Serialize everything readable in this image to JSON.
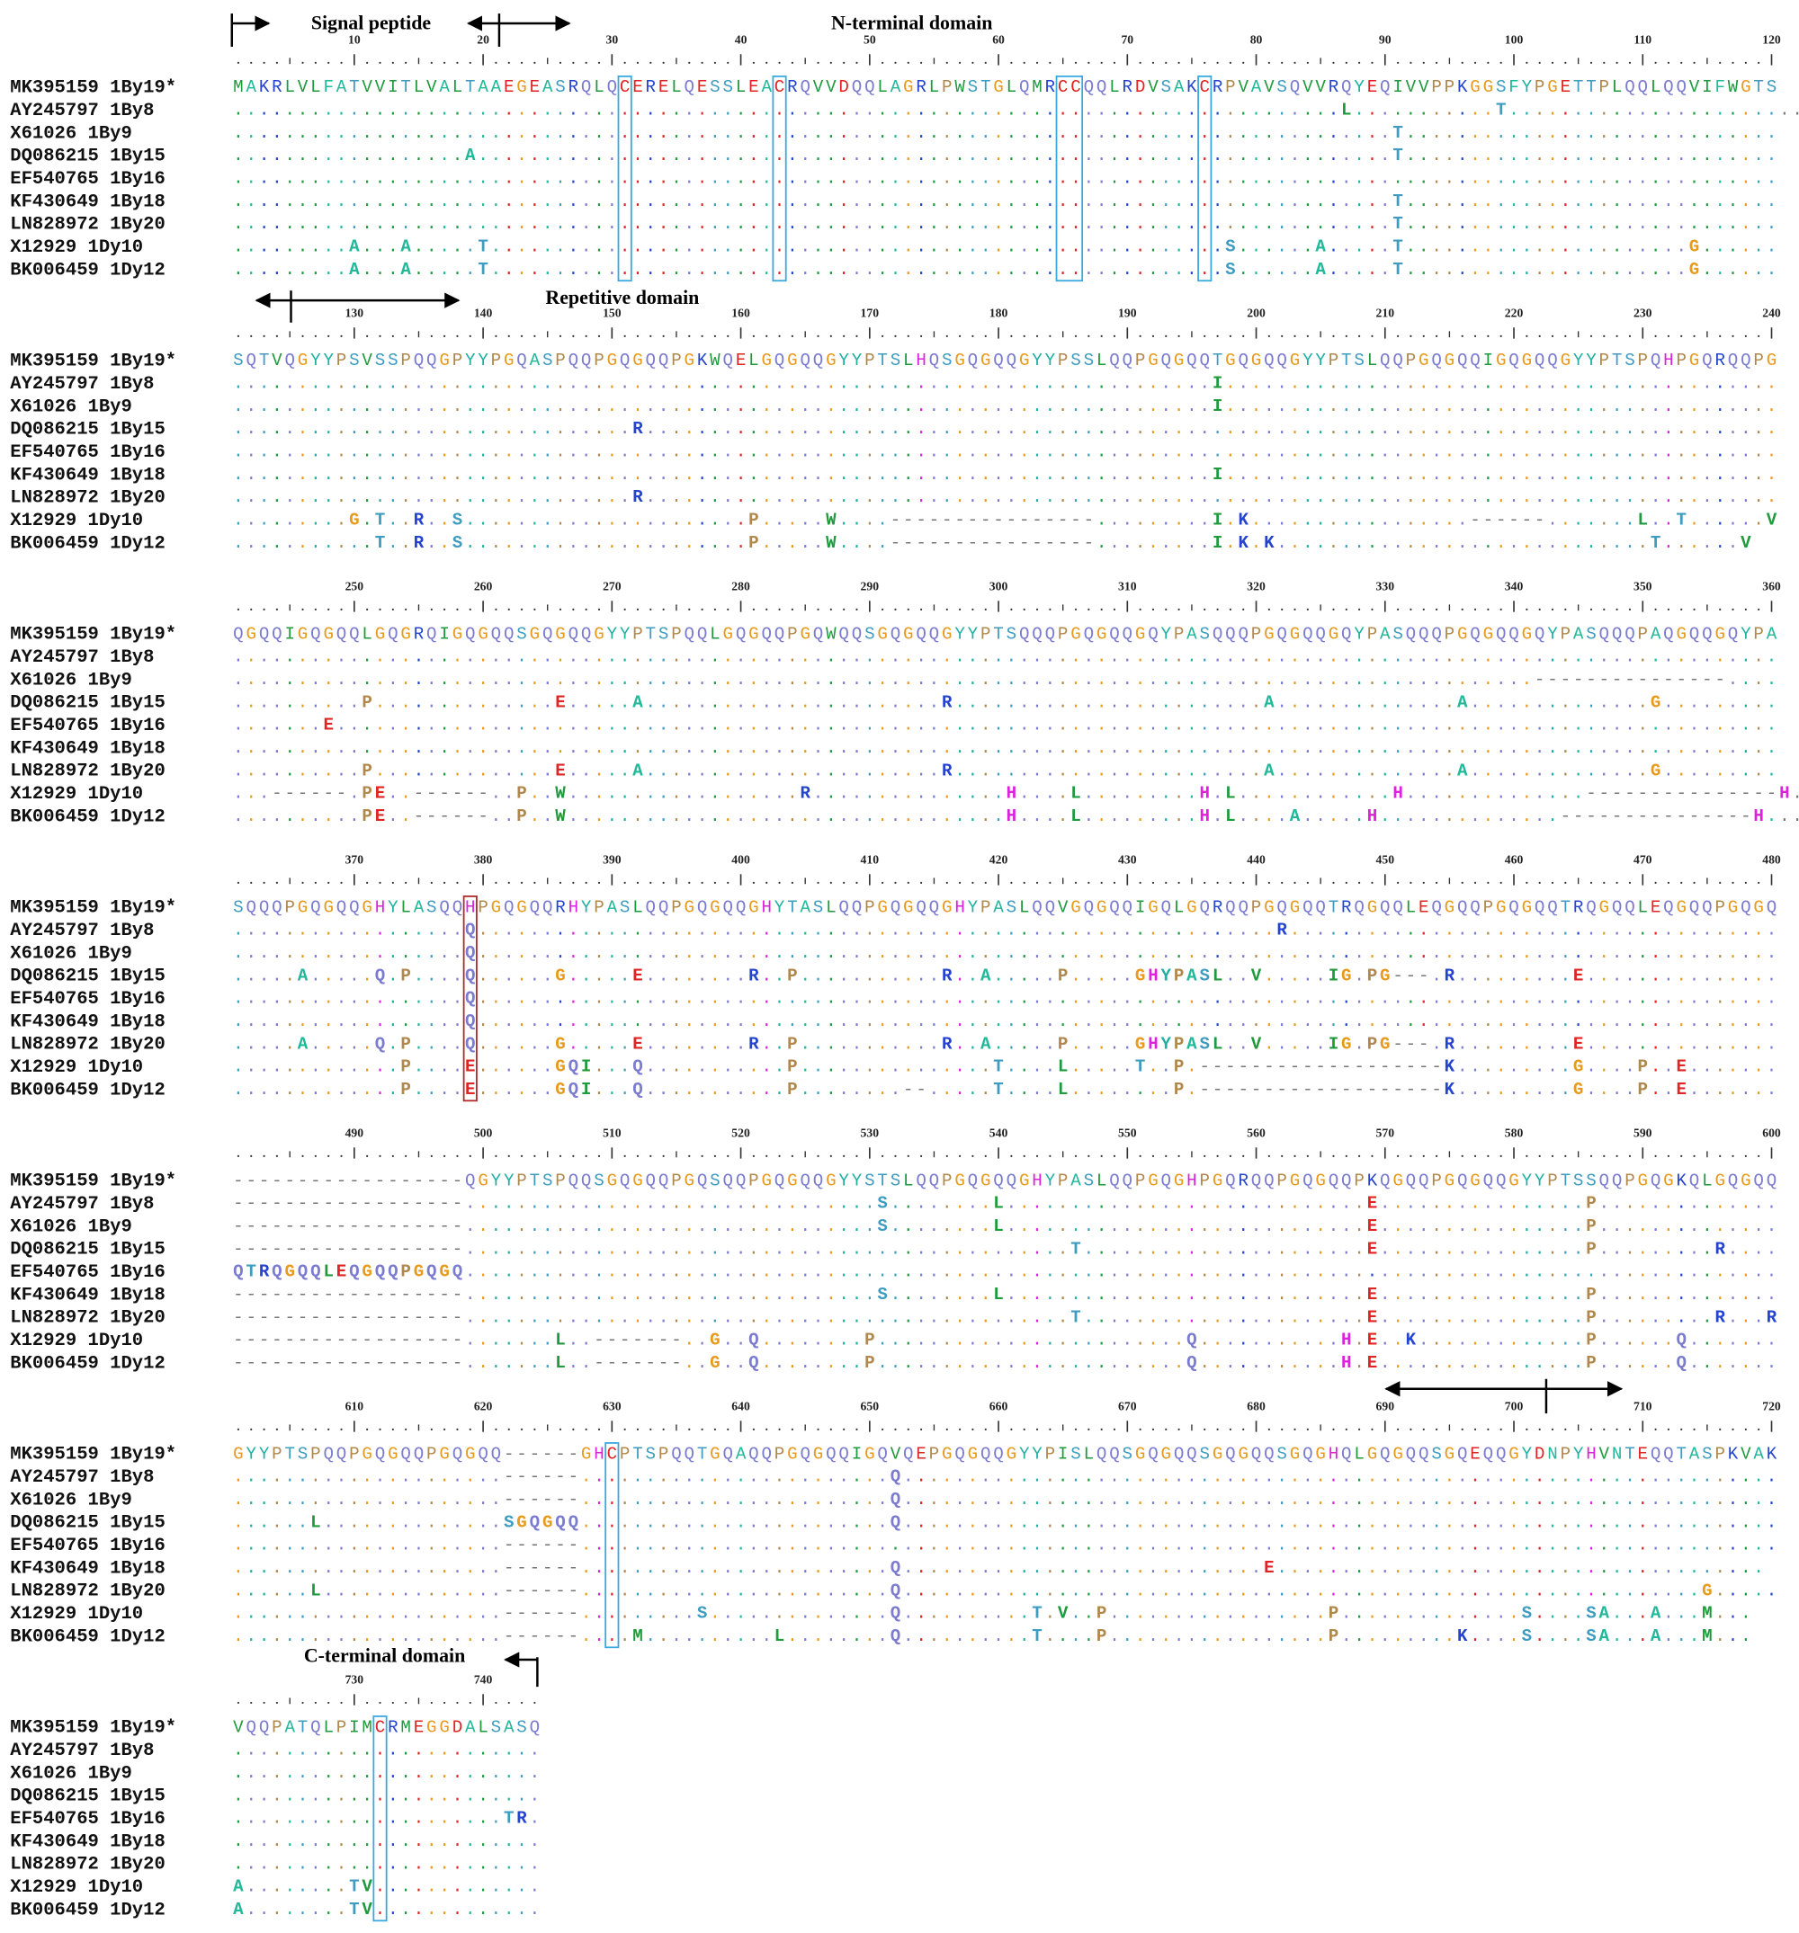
{
  "names": [
    "MK395159 1By19*",
    "AY245797 1By8",
    "X61026 1By9",
    "DQ086215 1By15",
    "EF540765 1By16",
    "KF430649 1By18",
    "LN828972 1By20",
    "X12929 1Dy10",
    "BK006459 1Dy12"
  ],
  "annotations": [
    "Signal peptide",
    "N-terminal domain",
    "Repetitive domain",
    "C-terminal domain"
  ],
  "residue_colors": {
    "G": "#e89a1c",
    "Q": "#7b7bd0",
    "P": "#b0884c",
    "Y": "#1fb0a2",
    "S": "#3d9cc0",
    "T": "#3d9cc0",
    "A": "#22b89a",
    "F": "#22b89a",
    "N": "#22b89a",
    "E": "#e02424",
    "D": "#e02424",
    "C": "#e02424",
    "R": "#2444d0",
    "K": "#2444d0",
    "H": "#dd22dd",
    "L": "#1f9a3c",
    "I": "#1f9a3c",
    "V": "#1f9a3c",
    "M": "#1f9a3c",
    "W": "#1f9a3c"
  },
  "gap_color": "#777777",
  "blocks": [
    {
      "ticks": [
        10,
        20,
        30,
        40,
        50,
        60,
        70,
        80,
        90,
        100,
        110,
        120
      ],
      "rows": [
        "MAKRLVLFATVVITLVALTAAEGEASRQLQCERELQESSLEACRQVVDQQLAGRLPWSTGLQMRCCQQLRDVSAKCRPVAVSQVVRQYEQIVVPPKGGSFYPGETTPLQQLQQVIFWGTS",
        "......................................................................................L...........T.............................",
        "..........................................................................................T.............................",
        "..................A.......................................................................T.............................",
        "........................................................................................................................",
        "..........................................................................................T.............................",
        "..........................................................................................T.............................",
        ".........A...A.....T.........................................................S......A.....T......................G......",
        ".........A...A.....T.........................................................S......A.....T......................G......"
      ]
    },
    {
      "ticks": [
        130,
        140,
        150,
        160,
        170,
        180,
        190,
        200,
        210,
        220,
        230,
        240
      ],
      "rows": [
        "SQTVQGYYPSVSSPQQGPYYPGQASPQQPGQGQQPGKWQELGQGQQGYYPTSLHQSGQGQQGYYPSSLQQPGQGQQTGQGQQGYYPTSLQQPGQGQQIGQGQQGYYPTSPQHPGQRQQPG",
        "............................................................................I...........................................",
        "............................................................................I...........................................",
        "...............................R........................................................................................",
        "........................................................................................................................",
        "............................................................................I...........................................",
        "...............................R........................................................................................",
        ".........G.T..R..S......................P.....W....----------------.........I.K.................------.......L..T......V",
        "...........T..R..S......................P.....W....----------------.........I.K.K.............................T......V"
      ]
    },
    {
      "ticks": [
        250,
        260,
        270,
        280,
        290,
        300,
        310,
        320,
        330,
        340,
        350,
        360
      ],
      "rows": [
        "QGQQIGQGQQLGQGRQIGQGQQSGQGQQGYYPTSPQQLGQGQQPGQWQQSGQGQQGYYPTSQQQPGQGQQGQYPASQQQPGQGQQGQYPASQQQPGQGQQGQYPASQQQPAQGQQGQYPA",
        "........................................................................................................................",
        ".....................................................................................................---------------....",
        "..........P..............E.....A.......................R........................A..............A..............G.........",
        ".......E................................................................................................................",
        "........................................................................................................................",
        "..........P..............E.....A.......................R........................A..............A..............G.........",
        "...------.PE..------..P..W..................R...............H....L.........H.L............H..............---------------H...",
        "..........PE..------..P..W..................................H....L.........H.L....A.....H..............---------------H..."
      ]
    },
    {
      "ticks": [
        370,
        380,
        390,
        400,
        410,
        420,
        430,
        440,
        450,
        460,
        470,
        480
      ],
      "rows": [
        "SQQQPGQGQQGHYLASQQHPGQGQQRHYPASLQQPGQGQQGHYTASLQQPGQGQQGHYPASLQQVGQGQQIGQLGQRQQPGQGQQTRQGQQLEQGQQPGQGQQTRQGQQLEQGQQPGQGQ",
        "..................Q..............................................................R......................................",
        "..................Q.....................................................................................................",
        ".....A.....Q.P....Q......G.....E........R..P...........R..A.....P.....GHYPASL..V.....IG.PG---.R.........E...............",
        "..................Q.....................................................................................................",
        "..................Q.....................................................................................................",
        ".....A.....Q.P....Q......G.....E........R..P...........R..A.....P.....GHYPASL..V.....IG.PG---.R.........E...............",
        ".............P....E......GQI...Q...........P...............T....L.....T..P.-------------------K.........G....P..E.......",
        ".............P....E......GQI...Q...........P........--.....T....L........P.-------------------K.........G....P..E......."
      ]
    },
    {
      "ticks": [
        490,
        500,
        510,
        520,
        530,
        540,
        550,
        560,
        570,
        580,
        590,
        600
      ],
      "rows": [
        "------------------QGYYPTSPQQSGQGQQPGQSQQPGQGQQGYYSTSLQQPGQGQQGHYPASLQQPGQGHPGQRQQPGQGQQPKQGQQPGQGQQGYYPTSSQQPGQGKQLGQGQQ",
        "------------------................................S........L............................E................P..............",
        "------------------................................S........L............................E................P..............",
        "------------------...............................................T......................E................P.........R....",
        "QTRQGQQLEQGQQPGQGQ......................................................................................................",
        "------------------................................S........L............................E................P..............",
        "------------------...............................................T......................E................P.........R...R",
        "------------------.......L..-------..G..Q........P........................Q...........H.E..K.............P......Q.......",
        "------------------.......L..-------..G..Q........P........................Q...........H.E................P......Q......."
      ]
    },
    {
      "ticks": [
        610,
        620,
        630,
        640,
        650,
        660,
        670,
        680,
        690,
        700,
        710,
        720
      ],
      "rows": [
        "GYYPTSPQQPGQGQQPGQGQQ------GHCPTSPQQTGQAQQPGQGQQIGQVQEPGQGQQGYYPISLQQSGQGQQSGQGQQSGQGHQLGQGQQSGQEQQGYDNPYHVNTEQQTASPKVAK",
        ".....................------........................Q....................................................................",
        ".....................------........................Q....................................................................",
        "......L..............SGQGQQ........................Q....................................................................",
        ".....................------.............................................................................................",
        ".....................------........................Q............................E......................................",
        "......L..............------........................Q..............................................................G.....",
        ".....................------.........S..............Q..........T.V..P.................P..............S....SA...A...M...",
        ".....................------....M..........L........Q..........T....P.................P.........K....S....SA...A...M..."
      ]
    },
    {
      "ticks": [
        730,
        740
      ],
      "rows": [
        "VQQPATQLPIMCRMEGGDALSASQ",
        "........................",
        "........................",
        "........................",
        ".....................TR.",
        "........................",
        "........................",
        "A........TV.............",
        "A........TV............."
      ]
    }
  ]
}
